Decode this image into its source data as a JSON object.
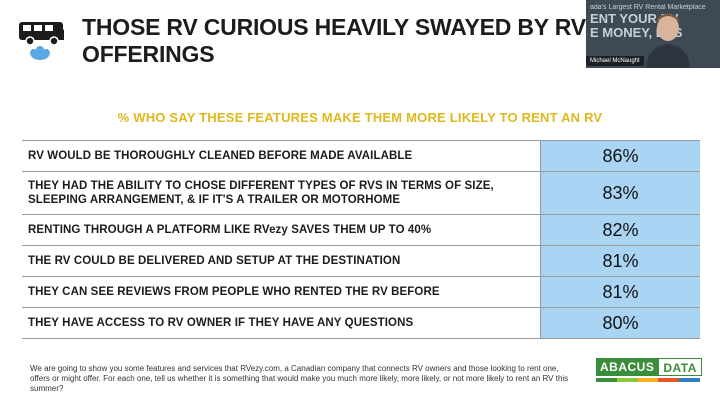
{
  "header": {
    "title_line1": "THOSE RV CURIOUS HEAVILY SWAYED BY RV",
    "title_line2": "OFFERINGS"
  },
  "video": {
    "background_small_text": "ada's Largest RV Rental Marketplace",
    "background_line1": "ENT YOUR RV",
    "background_line2": "E MONEY, EAS",
    "presenter_name": "Michael McNaught"
  },
  "subtitle": "% WHO SAY THESE FEATURES MAKE THEM MORE LIKELY TO RENT AN RV",
  "chart_data": {
    "type": "table",
    "title": "% WHO SAY THESE FEATURES MAKE THEM MORE LIKELY TO RENT AN RV",
    "categories": [
      "RV WOULD BE THOROUGHLY CLEANED BEFORE MADE AVAILABLE",
      "THEY HAD THE ABILITY TO CHOSE DIFFERENT TYPES OF RVS IN TERMS OF SIZE, SLEEPING ARRANGEMENT, & IF IT'S A TRAILER OR MOTORHOME",
      "RENTING THROUGH A PLATFORM LIKE RVezy SAVES THEM UP TO 40%",
      "THE RV COULD BE DELIVERED AND SETUP AT THE DESTINATION",
      "THEY CAN SEE REVIEWS FROM PEOPLE WHO RENTED THE RV BEFORE",
      "THEY HAVE ACCESS TO RV OWNER IF THEY HAVE ANY QUESTIONS"
    ],
    "values": [
      86,
      83,
      82,
      81,
      81,
      80
    ],
    "value_labels": [
      "86%",
      "83%",
      "82%",
      "81%",
      "81%",
      "80%"
    ]
  },
  "rows": [
    {
      "label": "RV WOULD BE THOROUGHLY CLEANED BEFORE MADE AVAILABLE",
      "value": "86%"
    },
    {
      "label": "THEY HAD THE ABILITY TO CHOSE DIFFERENT TYPES OF RVS IN TERMS OF SIZE, SLEEPING ARRANGEMENT, & IF IT'S A TRAILER OR MOTORHOME",
      "value": "83%"
    },
    {
      "label": "RENTING THROUGH A PLATFORM LIKE RVezy SAVES THEM UP TO 40%",
      "value": "82%"
    },
    {
      "label": "THE RV COULD BE DELIVERED AND SETUP AT THE DESTINATION",
      "value": "81%"
    },
    {
      "label": "THEY CAN SEE REVIEWS FROM PEOPLE WHO RENTED THE RV BEFORE",
      "value": "81%"
    },
    {
      "label": "THEY HAVE ACCESS TO RV OWNER IF THEY HAVE ANY QUESTIONS",
      "value": "80%"
    }
  ],
  "footnote": "We are going to show you some features and services that RVezy.com, a Canadian company that connects RV owners and those looking to rent one, offers or might offer. For each one, tell us whether it is something that would make you much more likely, more likely, or not more likely to rent an RV this summer?",
  "logo": {
    "part1": "ABACUS",
    "part2": "DATA"
  },
  "colors": {
    "title": "#1c1c1c",
    "subtitle": "#e0b81c",
    "value_cell": "#a9d4f3",
    "logo_green": "#3a8d3a",
    "icon_blue": "#5aa8e6"
  },
  "icons": [
    "rv-icon",
    "speech-cloud-icon",
    "presenter-avatar"
  ]
}
